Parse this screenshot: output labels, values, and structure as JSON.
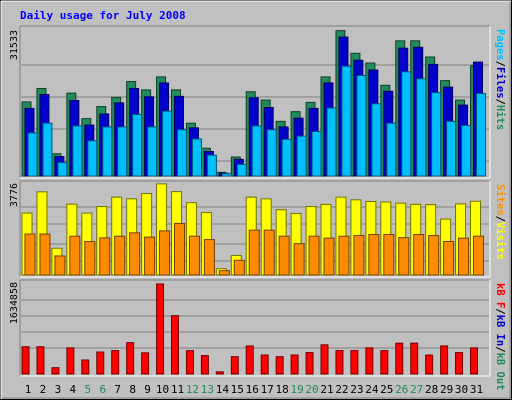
{
  "chart_data": {
    "type": "bar",
    "title": "Daily usage for July 2008",
    "categories": [
      "1",
      "2",
      "3",
      "4",
      "5",
      "6",
      "7",
      "8",
      "9",
      "10",
      "11",
      "12",
      "13",
      "14",
      "15",
      "16",
      "17",
      "18",
      "19",
      "20",
      "21",
      "22",
      "23",
      "24",
      "25",
      "26",
      "27",
      "28",
      "29",
      "30",
      "31"
    ],
    "weekend_days": [
      "5",
      "6",
      "12",
      "13",
      "19",
      "20",
      "26",
      "27"
    ],
    "panels": [
      {
        "name": "requests",
        "max_label": "31533",
        "ylim": [
          0,
          31533
        ],
        "labels": [
          "Pages",
          "/",
          "Files",
          "/",
          "Hits"
        ],
        "series": [
          {
            "name": "Hits",
            "color": "#228b5a",
            "values": [
              16000,
              18900,
              4800,
              17900,
              12400,
              15000,
              17000,
              20400,
              18600,
              21400,
              18600,
              11400,
              6000,
              800,
              4100,
              18200,
              16400,
              11800,
              13900,
              15900,
              21400,
              31400,
              26500,
              24400,
              19600,
              29200,
              29200,
              25700,
              20600,
              16400,
              23800
            ]
          },
          {
            "name": "Files",
            "color": "#0000cd",
            "values": [
              14600,
              17600,
              4200,
              16300,
              11000,
              13400,
              15800,
              18900,
              17100,
              20100,
              17200,
              10400,
              5300,
              600,
              3600,
              16900,
              14800,
              10600,
              12500,
              14600,
              20100,
              30000,
              25000,
              22900,
              18300,
              27600,
              27800,
              24100,
              19200,
              15300,
              24600
            ]
          },
          {
            "name": "Pages",
            "color": "#00bfff",
            "values": [
              9300,
              11400,
              2900,
              10800,
              7600,
              10600,
              10600,
              13300,
              10600,
              14000,
              10000,
              8000,
              4500,
              500,
              2500,
              10800,
              10000,
              7900,
              8600,
              9600,
              14700,
              23700,
              21700,
              15600,
              11400,
              22500,
              21000,
              18000,
              11800,
              10900,
              17800
            ]
          }
        ]
      },
      {
        "name": "visits",
        "max_label": "3776",
        "ylim": [
          0,
          3776
        ],
        "labels": [
          "Sites",
          "/",
          "Visits"
        ],
        "series": [
          {
            "name": "Visits",
            "color": "#ffff00",
            "values": [
              2570,
              3450,
              1110,
              2940,
              2570,
              2840,
              3230,
              3160,
              3380,
              3780,
              3460,
              3000,
              2590,
              260,
              810,
              3230,
              3160,
              2710,
              2550,
              2840,
              2930,
              3230,
              3120,
              3050,
              3030,
              2980,
              2930,
              2920,
              2320,
              2950,
              3060
            ]
          },
          {
            "name": "Sites",
            "color": "#ff8c00",
            "values": [
              1700,
              1700,
              790,
              1610,
              1390,
              1540,
              1610,
              1750,
              1570,
              1830,
              2140,
              1610,
              1470,
              180,
              610,
              1860,
              1860,
              1610,
              1300,
              1610,
              1530,
              1610,
              1640,
              1680,
              1680,
              1550,
              1680,
              1640,
              1390,
              1530,
              1610
            ]
          }
        ]
      },
      {
        "name": "traffic",
        "max_label": "1634858",
        "ylim": [
          0,
          1634858
        ],
        "labels": [
          "kB F",
          "/",
          "kB In",
          "/",
          "kB Out"
        ],
        "series": [
          {
            "name": "kB F",
            "color": "#ff0000",
            "values": [
              495000,
              495000,
              115000,
              475000,
              255000,
              400000,
              425000,
              570000,
              385000,
              1634858,
              1060000,
              425000,
              335000,
              40000,
              315000,
              510000,
              345000,
              315000,
              345000,
              390000,
              530000,
              425000,
              425000,
              475000,
              425000,
              560000,
              560000,
              345000,
              510000,
              390000,
              475000
            ]
          }
        ]
      }
    ]
  }
}
